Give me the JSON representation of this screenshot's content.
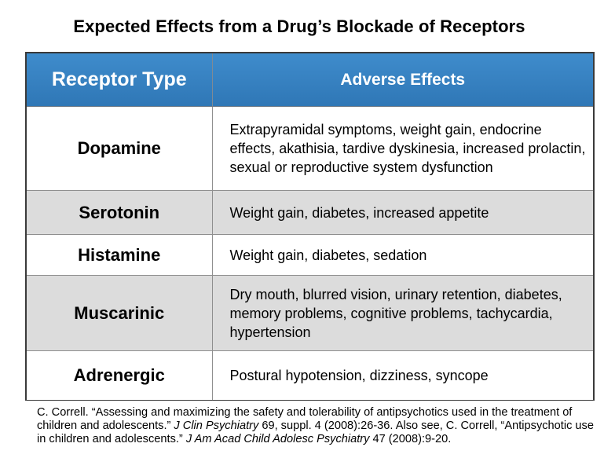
{
  "title": "Expected Effects from a Drug’s Blockade of Receptors",
  "table": {
    "headers": [
      "Receptor Type",
      "Adverse Effects"
    ],
    "rows": [
      {
        "receptor": "Dopamine",
        "effects": "Extrapyramidal symptoms, weight gain, endocrine effects, akathisia, tardive dyskinesia, increased prolactin, sexual or reproductive system dysfunction"
      },
      {
        "receptor": "Serotonin",
        "effects": "Weight gain, diabetes, increased appetite"
      },
      {
        "receptor": "Histamine",
        "effects": "Weight gain, diabetes, sedation"
      },
      {
        "receptor": "Muscarinic",
        "effects": "Dry mouth, blurred vision, urinary retention, diabetes, memory problems, cognitive problems, tachycardia, hypertension"
      },
      {
        "receptor": "Adrenergic",
        "effects": "Postural hypotension, dizziness, syncope"
      }
    ]
  },
  "citation": {
    "part1": "C. Correll. “Assessing and maximizing the safety and tolerability of antipsychotics used in the treatment of children and adolescents.” ",
    "journal1": "J Clin Psychiatry",
    "part2": " 69, suppl. 4 (2008):26-36. Also see, C. Correll, “Antipsychotic use in children and adolescents.” ",
    "journal2": "J Am Acad Child Adolesc Psychiatry",
    "part3": " 47 (2008):9-20."
  },
  "colors": {
    "header_bg": "#3582c2",
    "header_text": "#ffffff",
    "row_alt_bg": "#dcdcdc",
    "border": "#3a3a3a"
  }
}
